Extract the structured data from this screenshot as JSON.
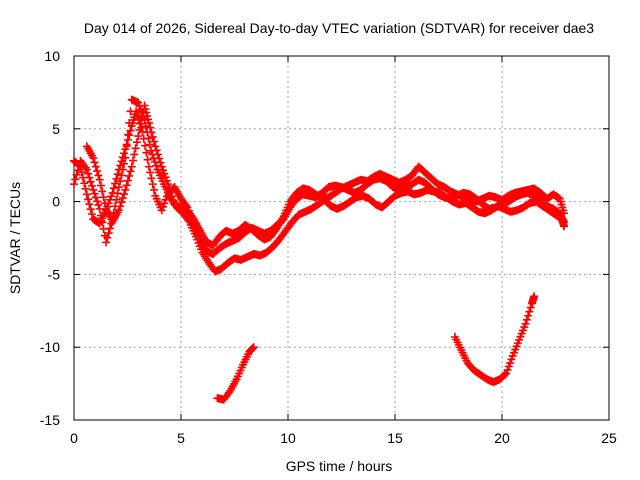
{
  "chart_data": {
    "type": "scatter",
    "title": "Day 014 of 2026, Sidereal Day-to-day VTEC variation (SDTVAR) for receiver dae3",
    "xlabel": "GPS time / hours",
    "ylabel": "SDTVAR / TECUs",
    "xlim": [
      0,
      25
    ],
    "ylim": [
      -15,
      10
    ],
    "xticks": [
      "0",
      "5",
      "10",
      "15",
      "20",
      "25"
    ],
    "yticks": [
      "10",
      "5",
      "0",
      "-5",
      "-10",
      "-15"
    ],
    "grid": true,
    "marker": "plus",
    "color": "#ff0000",
    "series": [
      {
        "name": "track-1",
        "points": [
          [
            0.0,
            2.8
          ],
          [
            0.3,
            2.4
          ],
          [
            0.6,
            0.5
          ],
          [
            0.9,
            -1.2
          ],
          [
            1.2,
            -1.5
          ],
          [
            1.5,
            -0.6
          ],
          [
            1.8,
            0.6
          ],
          [
            2.1,
            2.2
          ],
          [
            2.4,
            3.6
          ],
          [
            2.7,
            5.2
          ],
          [
            2.9,
            6.2
          ],
          [
            3.2,
            4.8
          ],
          [
            3.5,
            2.4
          ],
          [
            3.8,
            0.4
          ],
          [
            4.1,
            -0.6
          ],
          [
            4.4,
            0.6
          ],
          [
            4.7,
            1.0
          ],
          [
            5.0,
            0.2
          ],
          [
            5.3,
            -0.4
          ],
          [
            5.6,
            -1.5
          ],
          [
            5.9,
            -2.6
          ],
          [
            6.2,
            -3.4
          ],
          [
            6.5,
            -3.6
          ],
          [
            6.8,
            -3.2
          ],
          [
            7.1,
            -2.9
          ],
          [
            7.4,
            -2.7
          ],
          [
            7.7,
            -2.5
          ],
          [
            8.0,
            -2.1
          ],
          [
            8.3,
            -1.8
          ],
          [
            8.6,
            -2.0
          ],
          [
            8.9,
            -2.2
          ],
          [
            9.2,
            -2.0
          ],
          [
            9.5,
            -1.6
          ],
          [
            9.8,
            -1.2
          ],
          [
            10.1,
            -0.4
          ],
          [
            10.4,
            0.2
          ],
          [
            10.7,
            0.5
          ],
          [
            11.0,
            0.4
          ],
          [
            11.3,
            0.3
          ],
          [
            11.6,
            0.6
          ],
          [
            11.9,
            1.0
          ],
          [
            12.2,
            1.1
          ],
          [
            12.5,
            1.0
          ],
          [
            12.8,
            0.8
          ],
          [
            13.1,
            0.6
          ],
          [
            13.4,
            0.8
          ],
          [
            13.7,
            1.2
          ],
          [
            14.0,
            1.5
          ],
          [
            14.3,
            1.6
          ],
          [
            14.6,
            1.4
          ],
          [
            14.9,
            1.0
          ],
          [
            15.2,
            0.8
          ],
          [
            15.5,
            1.0
          ],
          [
            15.8,
            1.2
          ],
          [
            16.1,
            1.5
          ],
          [
            16.4,
            1.3
          ],
          [
            16.7,
            0.9
          ],
          [
            17.0,
            0.5
          ],
          [
            17.3,
            0.3
          ],
          [
            17.6,
            0.2
          ],
          [
            17.9,
            0.4
          ],
          [
            18.2,
            0.6
          ],
          [
            18.5,
            0.5
          ],
          [
            18.8,
            0.2
          ],
          [
            19.1,
            -0.2
          ],
          [
            19.4,
            -0.5
          ],
          [
            19.7,
            -0.4
          ],
          [
            20.0,
            -0.2
          ],
          [
            20.3,
            0.0
          ],
          [
            20.6,
            0.3
          ],
          [
            20.9,
            0.5
          ],
          [
            21.2,
            0.6
          ],
          [
            21.5,
            0.4
          ],
          [
            21.8,
            0.1
          ],
          [
            22.1,
            -0.3
          ],
          [
            22.4,
            -0.5
          ],
          [
            22.7,
            -0.8
          ],
          [
            22.9,
            -1.4
          ]
        ]
      },
      {
        "name": "track-2",
        "points": [
          [
            0.0,
            1.2
          ],
          [
            0.3,
            2.8
          ],
          [
            0.6,
            2.2
          ],
          [
            0.9,
            0.8
          ],
          [
            1.2,
            -0.5
          ],
          [
            1.5,
            -2.8
          ],
          [
            1.8,
            -1.2
          ],
          [
            2.1,
            1.0
          ],
          [
            2.4,
            3.0
          ],
          [
            2.7,
            7.0
          ],
          [
            3.0,
            6.8
          ],
          [
            3.3,
            5.6
          ],
          [
            3.6,
            3.5
          ],
          [
            3.9,
            2.2
          ],
          [
            4.2,
            1.2
          ],
          [
            4.5,
            0.3
          ],
          [
            4.8,
            -0.4
          ],
          [
            5.1,
            -0.8
          ],
          [
            5.4,
            -1.4
          ],
          [
            5.7,
            -2.4
          ],
          [
            6.0,
            -3.5
          ],
          [
            6.3,
            -4.2
          ],
          [
            6.6,
            -4.8
          ],
          [
            6.9,
            -4.6
          ],
          [
            7.2,
            -4.2
          ],
          [
            7.5,
            -3.9
          ],
          [
            7.8,
            -4.0
          ],
          [
            8.1,
            -3.8
          ],
          [
            8.4,
            -3.6
          ],
          [
            8.7,
            -3.7
          ],
          [
            9.0,
            -3.5
          ],
          [
            9.3,
            -3.1
          ],
          [
            9.6,
            -2.6
          ],
          [
            9.9,
            -2.0
          ],
          [
            10.2,
            -1.4
          ],
          [
            10.5,
            -0.9
          ],
          [
            10.8,
            -0.7
          ],
          [
            11.1,
            -0.5
          ],
          [
            11.4,
            -0.2
          ],
          [
            11.7,
            0.1
          ],
          [
            12.0,
            -0.3
          ],
          [
            12.3,
            -0.5
          ],
          [
            12.6,
            -0.3
          ],
          [
            12.9,
            0.0
          ],
          [
            13.2,
            0.3
          ],
          [
            13.5,
            0.4
          ],
          [
            13.8,
            0.2
          ],
          [
            14.1,
            -0.2
          ],
          [
            14.4,
            -0.4
          ],
          [
            14.7,
            0.0
          ],
          [
            15.0,
            0.4
          ],
          [
            15.3,
            0.6
          ],
          [
            15.6,
            0.7
          ],
          [
            15.9,
            0.5
          ],
          [
            16.2,
            0.6
          ],
          [
            16.5,
            0.8
          ],
          [
            16.8,
            0.7
          ],
          [
            17.1,
            0.6
          ],
          [
            17.4,
            0.3
          ],
          [
            17.7,
            0.0
          ],
          [
            18.0,
            -0.2
          ],
          [
            18.3,
            -0.1
          ],
          [
            18.6,
            -0.4
          ],
          [
            18.9,
            -0.7
          ],
          [
            19.2,
            -0.8
          ],
          [
            19.5,
            -0.6
          ],
          [
            19.8,
            -0.3
          ],
          [
            20.1,
            -0.5
          ],
          [
            20.4,
            -0.7
          ],
          [
            20.7,
            -0.6
          ],
          [
            21.0,
            -0.4
          ],
          [
            21.3,
            -0.1
          ],
          [
            21.6,
            0.0
          ],
          [
            21.9,
            -0.3
          ],
          [
            22.2,
            -0.6
          ],
          [
            22.5,
            -0.9
          ],
          [
            22.8,
            -1.2
          ],
          [
            22.9,
            -1.7
          ]
        ]
      },
      {
        "name": "track-3",
        "points": [
          [
            0.6,
            3.8
          ],
          [
            0.9,
            3.0
          ],
          [
            1.2,
            1.5
          ],
          [
            1.5,
            -0.5
          ],
          [
            1.8,
            -1.4
          ],
          [
            2.1,
            -0.6
          ],
          [
            2.4,
            0.8
          ],
          [
            2.7,
            2.4
          ],
          [
            3.0,
            4.5
          ],
          [
            3.3,
            6.6
          ],
          [
            3.5,
            5.4
          ],
          [
            3.8,
            3.8
          ],
          [
            4.1,
            2.4
          ],
          [
            4.4,
            1.2
          ],
          [
            4.7,
            -0.2
          ],
          [
            5.0,
            -0.4
          ],
          [
            5.3,
            -0.6
          ],
          [
            5.6,
            -1.2
          ],
          [
            5.9,
            -2.0
          ],
          [
            6.2,
            -2.8
          ],
          [
            6.5,
            -3.0
          ],
          [
            6.8,
            -2.4
          ],
          [
            7.1,
            -2.0
          ],
          [
            7.4,
            -2.2
          ],
          [
            7.7,
            -2.0
          ],
          [
            8.0,
            -1.6
          ],
          [
            8.3,
            -1.9
          ],
          [
            8.6,
            -2.3
          ],
          [
            8.9,
            -2.6
          ],
          [
            9.2,
            -2.4
          ],
          [
            9.5,
            -1.8
          ],
          [
            9.8,
            -1.0
          ],
          [
            10.1,
            0.0
          ],
          [
            10.4,
            0.6
          ],
          [
            10.7,
            0.9
          ],
          [
            11.0,
            0.8
          ],
          [
            11.3,
            0.5
          ],
          [
            11.6,
            0.2
          ],
          [
            11.9,
            0.3
          ],
          [
            12.2,
            0.6
          ],
          [
            12.5,
            0.9
          ],
          [
            12.8,
            1.1
          ],
          [
            13.1,
            1.3
          ],
          [
            13.4,
            1.5
          ],
          [
            13.7,
            1.4
          ],
          [
            14.0,
            1.7
          ],
          [
            14.3,
            1.9
          ],
          [
            14.6,
            1.7
          ],
          [
            14.9,
            1.5
          ],
          [
            15.2,
            1.3
          ],
          [
            15.5,
            1.5
          ],
          [
            15.8,
            1.8
          ],
          [
            16.1,
            2.4
          ],
          [
            16.4,
            2.0
          ],
          [
            16.7,
            1.6
          ],
          [
            17.0,
            1.2
          ],
          [
            17.3,
            1.0
          ],
          [
            17.6,
            0.7
          ],
          [
            17.9,
            0.5
          ],
          [
            18.2,
            0.3
          ],
          [
            18.5,
            0.1
          ],
          [
            18.8,
            0.0
          ],
          [
            19.1,
            0.2
          ],
          [
            19.4,
            0.4
          ],
          [
            19.7,
            0.3
          ],
          [
            20.0,
            0.1
          ],
          [
            20.3,
            0.4
          ],
          [
            20.6,
            0.6
          ],
          [
            20.9,
            0.7
          ],
          [
            21.2,
            0.8
          ],
          [
            21.5,
            0.9
          ],
          [
            21.8,
            0.6
          ],
          [
            22.1,
            0.2
          ],
          [
            22.4,
            0.5
          ],
          [
            22.7,
            0.2
          ],
          [
            22.9,
            -0.8
          ]
        ]
      },
      {
        "name": "track-4",
        "points": [
          [
            6.7,
            -13.5
          ],
          [
            7.0,
            -13.6
          ],
          [
            7.3,
            -13.0
          ],
          [
            7.6,
            -12.2
          ],
          [
            7.9,
            -11.2
          ],
          [
            8.2,
            -10.3
          ],
          [
            8.4,
            -10.0
          ]
        ]
      },
      {
        "name": "track-5",
        "points": [
          [
            17.8,
            -9.3
          ],
          [
            18.1,
            -10.2
          ],
          [
            18.4,
            -11.1
          ],
          [
            18.7,
            -11.6
          ],
          [
            19.0,
            -11.9
          ],
          [
            19.3,
            -12.2
          ],
          [
            19.6,
            -12.4
          ],
          [
            19.9,
            -12.2
          ],
          [
            20.2,
            -11.8
          ],
          [
            20.5,
            -10.6
          ],
          [
            20.8,
            -9.5
          ],
          [
            21.1,
            -8.4
          ],
          [
            21.4,
            -7.0
          ],
          [
            21.5,
            -6.5
          ]
        ]
      }
    ]
  }
}
